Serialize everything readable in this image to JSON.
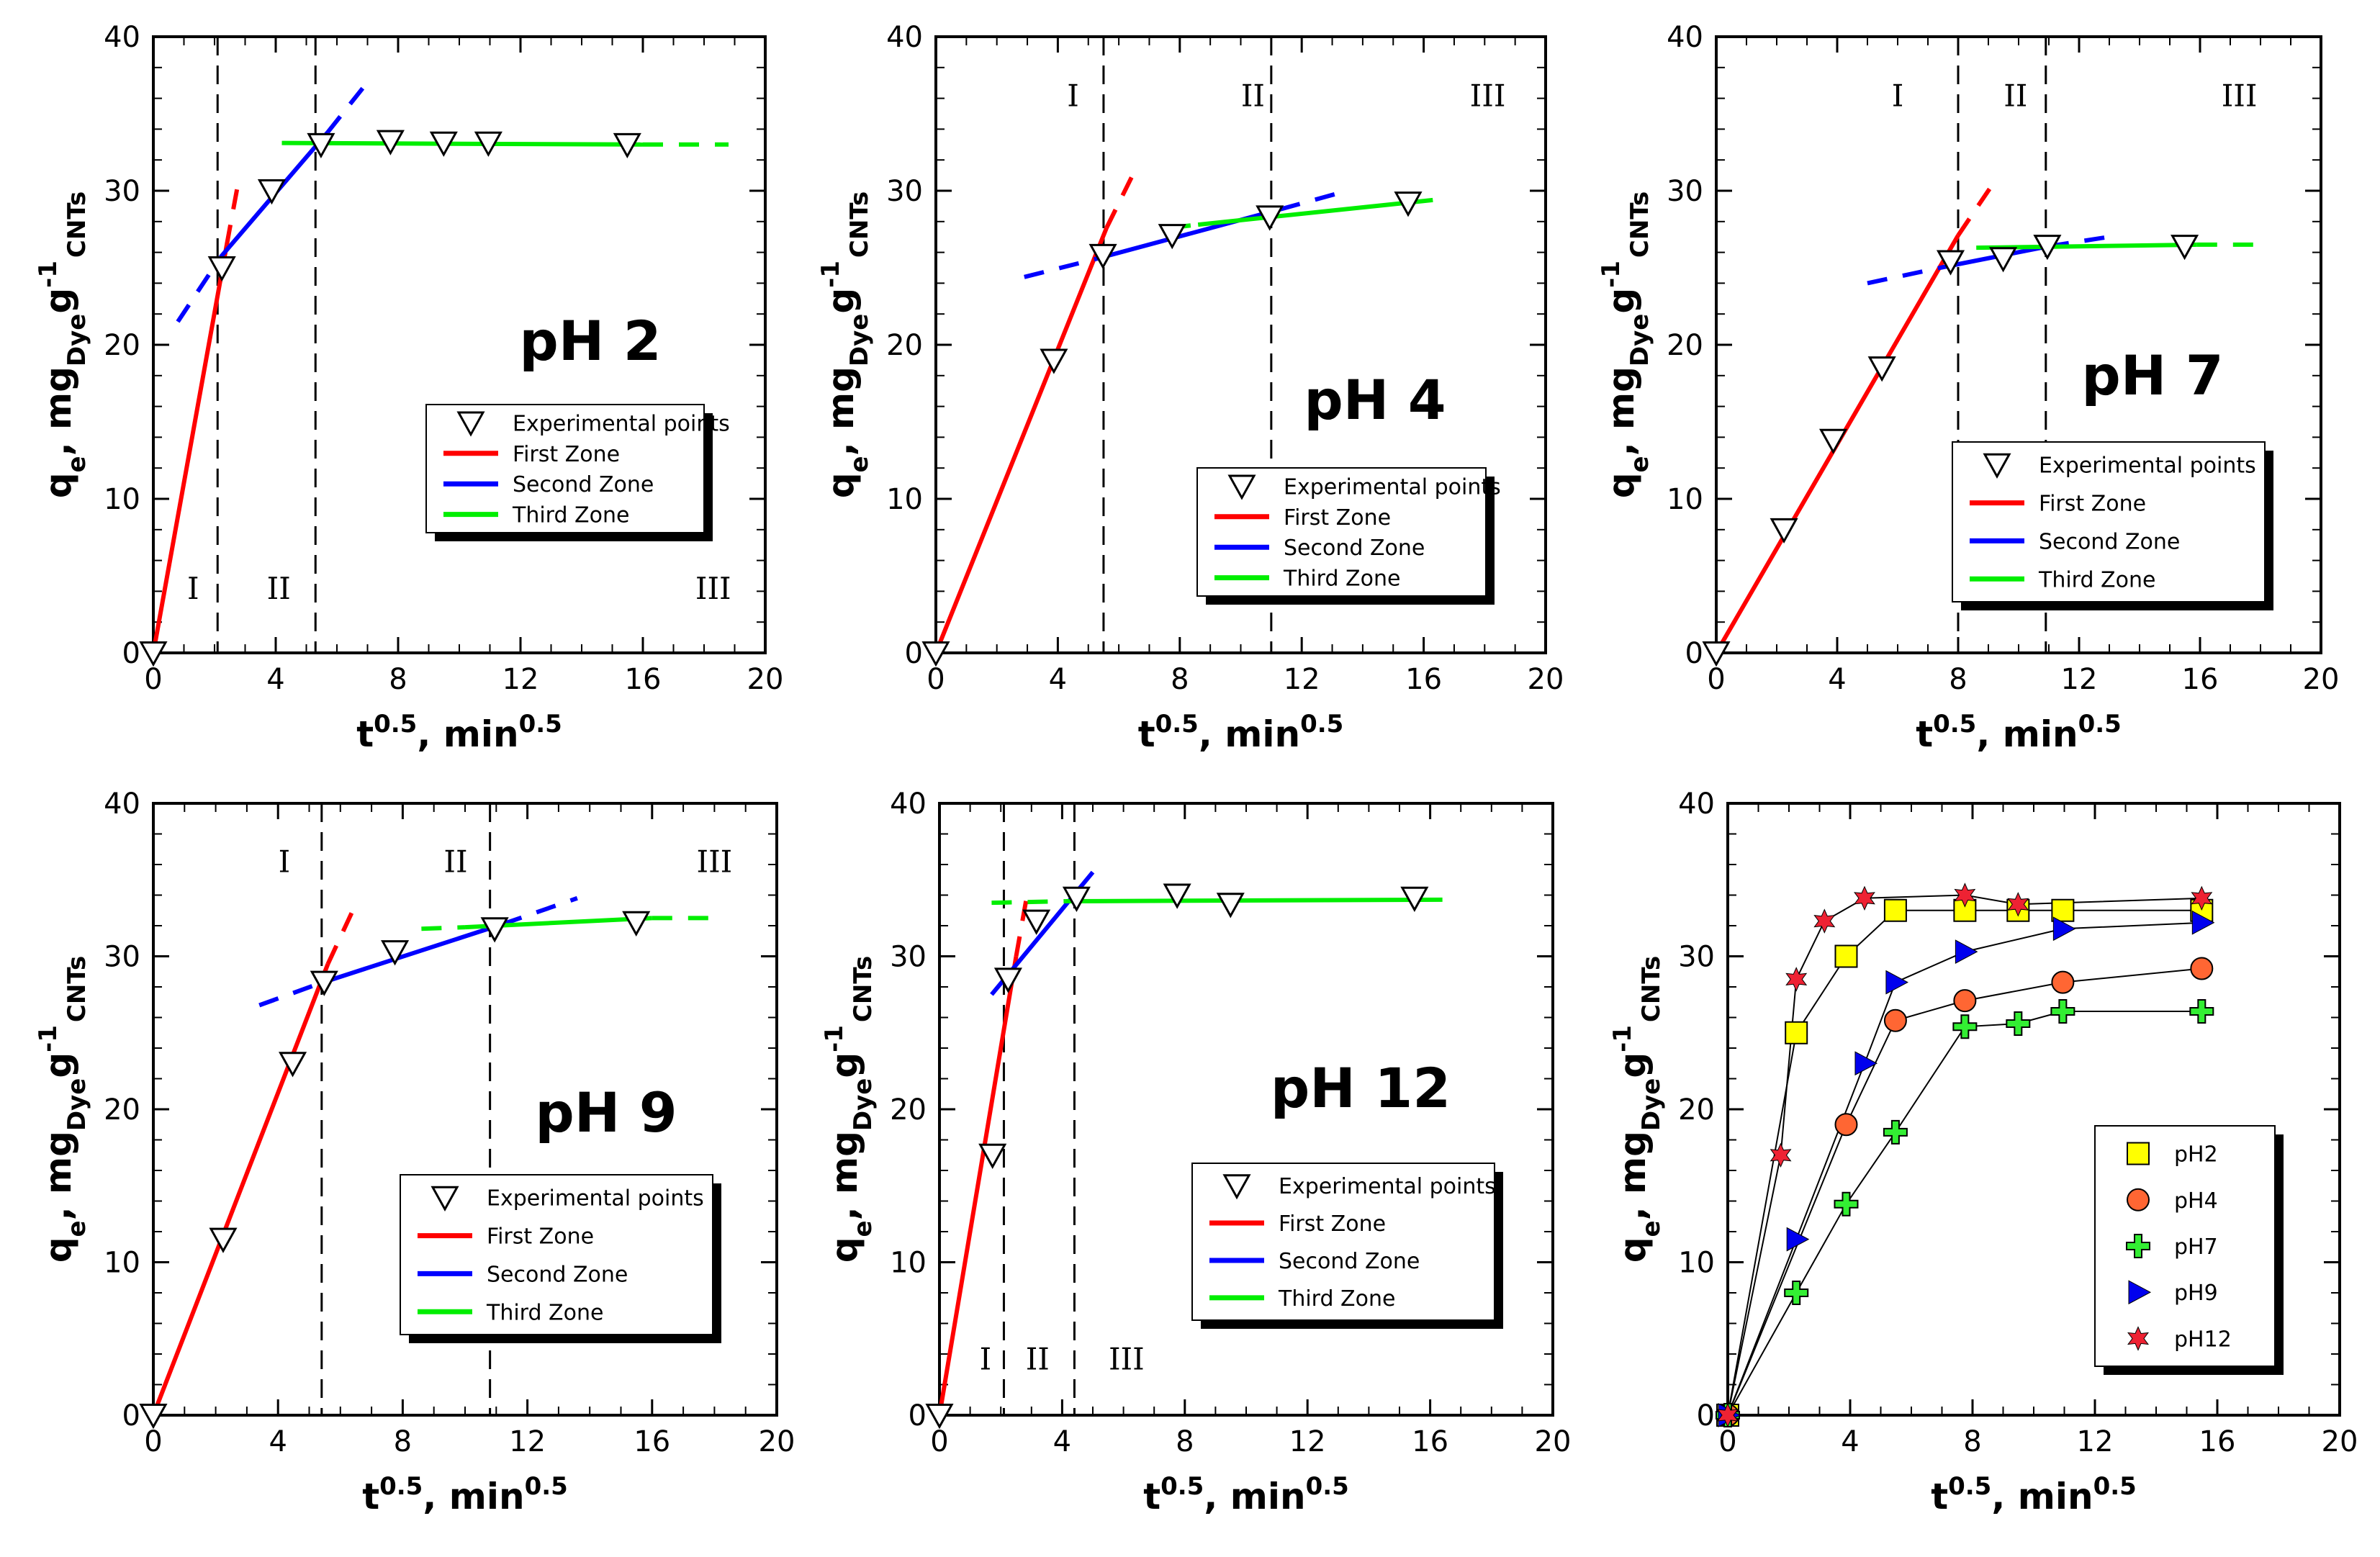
{
  "chart_data": [
    {
      "type": "scatter",
      "title": "pH 2",
      "xlabel": "t^0.5, min^0.5",
      "ylabel": "qe, mgDye g-1 CNTs",
      "xlim": [
        0,
        20
      ],
      "ylim": [
        0,
        40
      ],
      "xticks": [
        "0",
        "4",
        "8",
        "12",
        "16",
        "20"
      ],
      "yticks": [
        "0",
        "10",
        "20",
        "30",
        "40"
      ],
      "legend_position": "center-right",
      "legend": [
        "Experimental points",
        "First Zone",
        "Second Zone",
        "Third Zone"
      ],
      "zone_boundaries": [
        2.1,
        5.3
      ],
      "zone_labels": [
        {
          "text": "I",
          "x": 1.3,
          "y": 3.5
        },
        {
          "text": "II",
          "x": 4.1,
          "y": 3.5
        },
        {
          "text": "III",
          "x": 18.3,
          "y": 3.5
        }
      ],
      "series": [
        {
          "name": "Experimental points",
          "x": [
            0,
            2.24,
            3.87,
            5.48,
            7.75,
            9.49,
            10.95,
            15.49
          ],
          "y": [
            0,
            25.0,
            30.0,
            33.0,
            33.2,
            33.1,
            33.1,
            33.0
          ]
        },
        {
          "name": "First Zone",
          "solid": [
            [
              0,
              0
            ],
            [
              2.4,
              26.5
            ]
          ],
          "dashed": [
            [
              2.4,
              26.5
            ],
            [
              2.8,
              30.8
            ]
          ],
          "color": "#ff0000"
        },
        {
          "name": "Second Zone",
          "solid": [
            [
              2.2,
              25.7
            ],
            [
              5.7,
              33.8
            ]
          ],
          "dashed": [
            [
              5.7,
              33.8
            ],
            [
              6.9,
              36.8
            ],
            [
              0.8,
              21.5
            ],
            [
              2.2,
              25.7
            ]
          ],
          "color": "#0000ff"
        },
        {
          "name": "Third Zone",
          "solid": [
            [
              4.2,
              33.1
            ],
            [
              16.0,
              33.0
            ]
          ],
          "dashed": [
            [
              16.0,
              33.0
            ],
            [
              18.8,
              33.0
            ]
          ],
          "color": "#00ee00"
        }
      ]
    },
    {
      "type": "scatter",
      "title": "pH 4",
      "xlabel": "t^0.5, min^0.5",
      "ylabel": "qe, mgDye g-1 CNTs",
      "xlim": [
        0,
        20
      ],
      "ylim": [
        0,
        40
      ],
      "xticks": [
        "0",
        "4",
        "8",
        "12",
        "16",
        "20"
      ],
      "yticks": [
        "0",
        "10",
        "20",
        "30",
        "40"
      ],
      "legend_position": "bottom-right",
      "legend": [
        "Experimental points",
        "First Zone",
        "Second Zone",
        "Third Zone"
      ],
      "zone_boundaries": [
        5.5,
        11.0
      ],
      "zone_labels": [
        {
          "text": "I",
          "x": 4.5,
          "y": 35.5
        },
        {
          "text": "II",
          "x": 10.4,
          "y": 35.5
        },
        {
          "text": "III",
          "x": 18.1,
          "y": 35.5
        }
      ],
      "series": [
        {
          "name": "Experimental points",
          "x": [
            0,
            3.87,
            5.48,
            7.75,
            10.95,
            15.49
          ],
          "y": [
            0,
            19.0,
            25.8,
            27.1,
            28.3,
            29.2
          ]
        },
        {
          "name": "First Zone",
          "solid": [
            [
              0,
              0
            ],
            [
              5.6,
              27.6
            ]
          ],
          "dashed": [
            [
              5.6,
              27.6
            ],
            [
              6.5,
              31.2
            ]
          ],
          "color": "#ff0000"
        },
        {
          "name": "Second Zone",
          "solid": [
            [
              5.3,
              25.6
            ],
            [
              11.3,
              28.8
            ]
          ],
          "dashed": [
            [
              2.9,
              24.4
            ],
            [
              5.3,
              25.6
            ],
            [
              11.3,
              28.8
            ],
            [
              13.5,
              30.0
            ]
          ],
          "color": "#0000ff"
        },
        {
          "name": "Third Zone",
          "solid": [
            [
              8.6,
              27.8
            ],
            [
              16.3,
              29.4
            ]
          ],
          "dashed": [
            [
              7.7,
              27.6
            ],
            [
              8.6,
              27.8
            ]
          ],
          "color": "#00ee00"
        }
      ]
    },
    {
      "type": "scatter",
      "title": "pH 7",
      "xlabel": "t^0.5, min^0.5",
      "ylabel": "qe, mgDye g-1 CNTs",
      "xlim": [
        0,
        20
      ],
      "ylim": [
        0,
        40
      ],
      "xticks": [
        "0",
        "4",
        "8",
        "12",
        "16",
        "20"
      ],
      "yticks": [
        "0",
        "10",
        "20",
        "30",
        "40"
      ],
      "legend_position": "bottom-right",
      "legend": [
        "Experimental points",
        "First Zone",
        "Second Zone",
        "Third Zone"
      ],
      "zone_boundaries": [
        8.0,
        10.9
      ],
      "zone_labels": [
        {
          "text": "I",
          "x": 6.0,
          "y": 35.5
        },
        {
          "text": "II",
          "x": 9.9,
          "y": 35.5
        },
        {
          "text": "III",
          "x": 17.3,
          "y": 35.5
        }
      ],
      "series": [
        {
          "name": "Experimental points",
          "x": [
            0,
            2.24,
            3.87,
            5.48,
            7.75,
            9.49,
            10.95,
            15.49
          ],
          "y": [
            0,
            8.0,
            13.8,
            18.5,
            25.4,
            25.6,
            26.4,
            26.4
          ]
        },
        {
          "name": "First Zone",
          "solid": [
            [
              0,
              0
            ],
            [
              8.0,
              27.1
            ]
          ],
          "dashed": [
            [
              8.0,
              27.1
            ],
            [
              9.1,
              30.3
            ]
          ],
          "color": "#ff0000"
        },
        {
          "name": "Second Zone",
          "solid": [
            [
              7.4,
              25.0
            ],
            [
              11.0,
              26.4
            ]
          ],
          "dashed": [
            [
              5.0,
              24.0
            ],
            [
              7.4,
              25.0
            ],
            [
              11.0,
              26.4
            ],
            [
              13.3,
              27.1
            ]
          ],
          "color": "#0000ff"
        },
        {
          "name": "Third Zone",
          "solid": [
            [
              8.6,
              26.3
            ],
            [
              15.9,
              26.5
            ]
          ],
          "dashed": [
            [
              15.9,
              26.5
            ],
            [
              17.8,
              26.5
            ]
          ],
          "color": "#00ee00"
        }
      ]
    },
    {
      "type": "scatter",
      "title": "pH 9",
      "xlabel": "t^0.5, min^0.5",
      "ylabel": "qe, mgDye g-1 CNTs",
      "xlim": [
        0,
        20
      ],
      "ylim": [
        0,
        40
      ],
      "xticks": [
        "0",
        "4",
        "8",
        "12",
        "16",
        "20"
      ],
      "yticks": [
        "0",
        "10",
        "20",
        "30",
        "40"
      ],
      "legend_position": "bottom-right",
      "legend": [
        "Experimental points",
        "First Zone",
        "Second Zone",
        "Third Zone"
      ],
      "zone_boundaries": [
        5.4,
        10.8
      ],
      "zone_labels": [
        {
          "text": "I",
          "x": 4.2,
          "y": 35.5
        },
        {
          "text": "II",
          "x": 9.7,
          "y": 35.5
        },
        {
          "text": "III",
          "x": 18.0,
          "y": 35.5
        }
      ],
      "series": [
        {
          "name": "Experimental points",
          "x": [
            0,
            2.24,
            4.47,
            5.48,
            7.75,
            10.95,
            15.49
          ],
          "y": [
            0,
            11.5,
            23.0,
            28.3,
            30.3,
            31.8,
            32.2
          ]
        },
        {
          "name": "First Zone",
          "solid": [
            [
              0,
              0
            ],
            [
              5.6,
              29.5
            ]
          ],
          "dashed": [
            [
              5.6,
              29.5
            ],
            [
              6.4,
              33.0
            ]
          ],
          "color": "#ff0000"
        },
        {
          "name": "Second Zone",
          "solid": [
            [
              5.3,
              28.2
            ],
            [
              11.2,
              32.1
            ]
          ],
          "dashed": [
            [
              3.4,
              26.8
            ],
            [
              5.3,
              28.2
            ],
            [
              11.2,
              32.1
            ],
            [
              13.6,
              33.8
            ]
          ],
          "color": "#0000ff"
        },
        {
          "name": "Third Zone",
          "solid": [
            [
              10.0,
              31.9
            ],
            [
              16.0,
              32.5
            ]
          ],
          "dashed": [
            [
              8.6,
              31.8
            ],
            [
              10.0,
              31.9
            ],
            [
              16.0,
              32.5
            ],
            [
              18.3,
              32.5
            ]
          ],
          "color": "#00ee00"
        }
      ]
    },
    {
      "type": "scatter",
      "title": "pH 12",
      "xlabel": "t^0.5, min^0.5",
      "ylabel": "qe, mgDye g-1 CNTs",
      "xlim": [
        0,
        20
      ],
      "ylim": [
        0,
        40
      ],
      "xticks": [
        "0",
        "4",
        "8",
        "12",
        "16",
        "20"
      ],
      "yticks": [
        "0",
        "10",
        "20",
        "30",
        "40"
      ],
      "legend_position": "bottom-right",
      "legend": [
        "Experimental points",
        "First Zone",
        "Second Zone",
        "Third Zone"
      ],
      "zone_boundaries": [
        2.1,
        4.4
      ],
      "zone_labels": [
        {
          "text": "I",
          "x": 1.5,
          "y": 3.0
        },
        {
          "text": "II",
          "x": 3.2,
          "y": 3.0
        },
        {
          "text": "III",
          "x": 6.1,
          "y": 3.0
        }
      ],
      "series": [
        {
          "name": "Experimental points",
          "x": [
            0,
            1.73,
            2.24,
            3.16,
            4.47,
            7.75,
            9.49,
            15.49
          ],
          "y": [
            0,
            17.0,
            28.5,
            32.3,
            33.8,
            34.0,
            33.4,
            33.8
          ]
        },
        {
          "name": "First Zone",
          "solid": [
            [
              0,
              0
            ],
            [
              2.5,
              30.0
            ]
          ],
          "dashed": [
            [
              2.5,
              30.0
            ],
            [
              2.9,
              34.5
            ]
          ],
          "color": "#ff0000"
        },
        {
          "name": "Second Zone",
          "solid": [
            [
              1.7,
              27.5
            ],
            [
              5.0,
              35.5
            ]
          ],
          "dashed": [],
          "color": "#0000ff"
        },
        {
          "name": "Third Zone",
          "solid": [
            [
              4.1,
              33.6
            ],
            [
              16.4,
              33.7
            ]
          ],
          "dashed": [
            [
              1.7,
              33.5
            ],
            [
              4.1,
              33.6
            ]
          ],
          "color": "#00ee00"
        }
      ]
    },
    {
      "type": "line",
      "title": "",
      "xlabel": "t^0.5, min^0.5",
      "ylabel": "qe, mgDye g-1 CNTs",
      "xlim": [
        0,
        20
      ],
      "ylim": [
        0,
        40
      ],
      "xticks": [
        "0",
        "4",
        "8",
        "12",
        "16",
        "20"
      ],
      "yticks": [
        "0",
        "10",
        "20",
        "30",
        "40"
      ],
      "legend_position": "bottom-right",
      "legend": [
        "pH2",
        "pH4",
        "pH7",
        "pH9",
        "pH12"
      ],
      "series": [
        {
          "name": "pH2",
          "marker": "square",
          "color": "#ffff00",
          "x": [
            0,
            2.24,
            3.87,
            5.48,
            7.75,
            9.49,
            10.95,
            15.49
          ],
          "y": [
            0,
            25.0,
            30.0,
            33.0,
            33.0,
            33.0,
            33.0,
            33.0
          ]
        },
        {
          "name": "pH4",
          "marker": "circle",
          "color": "#ff6633",
          "x": [
            0,
            3.87,
            5.48,
            7.75,
            10.95,
            15.49
          ],
          "y": [
            0,
            19.0,
            25.8,
            27.1,
            28.3,
            29.2
          ]
        },
        {
          "name": "pH7",
          "marker": "plus",
          "color": "#33ee33",
          "x": [
            0,
            2.24,
            3.87,
            5.48,
            7.75,
            9.49,
            10.95,
            15.49
          ],
          "y": [
            0,
            8.0,
            13.8,
            18.5,
            25.4,
            25.6,
            26.4,
            26.4
          ]
        },
        {
          "name": "pH9",
          "marker": "triangle-right",
          "color": "#0000ee",
          "x": [
            0,
            2.24,
            4.47,
            5.48,
            7.75,
            10.95,
            15.49
          ],
          "y": [
            0,
            11.5,
            23.0,
            28.3,
            30.3,
            31.8,
            32.2
          ]
        },
        {
          "name": "pH12",
          "marker": "star",
          "color": "#ee2233",
          "x": [
            0,
            1.73,
            2.24,
            3.16,
            4.47,
            7.75,
            9.49,
            15.49
          ],
          "y": [
            0,
            17.0,
            28.5,
            32.3,
            33.8,
            34.0,
            33.4,
            33.8
          ]
        }
      ]
    }
  ]
}
